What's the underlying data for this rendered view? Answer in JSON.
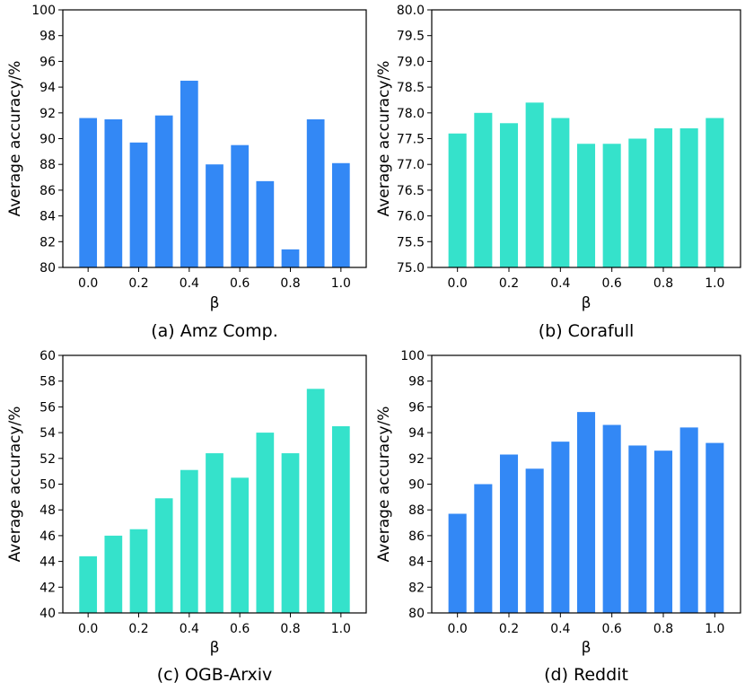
{
  "colors": {
    "blue": "#3388f5",
    "teal": "#35e2cb"
  },
  "chart_data": [
    {
      "type": "bar",
      "caption": "(a) Amz Comp.",
      "xlabel": "β",
      "ylabel": "Average accuracy/%",
      "color": "#3388f5",
      "x": [
        0.0,
        0.1,
        0.2,
        0.3,
        0.4,
        0.5,
        0.6,
        0.7,
        0.8,
        0.9,
        1.0
      ],
      "values": [
        91.6,
        91.5,
        89.7,
        91.8,
        94.5,
        88.0,
        89.5,
        86.7,
        81.4,
        91.5,
        88.1
      ],
      "xticks": [
        "0.0",
        "0.2",
        "0.4",
        "0.6",
        "0.8",
        "1.0"
      ],
      "yticks": [
        "80",
        "82",
        "84",
        "86",
        "88",
        "90",
        "92",
        "94",
        "96",
        "98",
        "100"
      ],
      "ylim": [
        80,
        100
      ],
      "grid": false
    },
    {
      "type": "bar",
      "caption": "(b) Corafull",
      "xlabel": "β",
      "ylabel": "Average accuracy/%",
      "color": "#35e2cb",
      "x": [
        0.0,
        0.1,
        0.2,
        0.3,
        0.4,
        0.5,
        0.6,
        0.7,
        0.8,
        0.9,
        1.0
      ],
      "values": [
        77.6,
        78.0,
        77.8,
        78.2,
        77.9,
        77.4,
        77.4,
        77.5,
        77.7,
        77.7,
        77.9
      ],
      "xticks": [
        "0.0",
        "0.2",
        "0.4",
        "0.6",
        "0.8",
        "1.0"
      ],
      "yticks": [
        "75.0",
        "75.5",
        "76.0",
        "76.5",
        "77.0",
        "77.5",
        "78.0",
        "78.5",
        "79.0",
        "79.5",
        "80.0"
      ],
      "ylim": [
        75,
        80
      ],
      "grid": false
    },
    {
      "type": "bar",
      "caption": "(c) OGB-Arxiv",
      "xlabel": "β",
      "ylabel": "Average accuracy/%",
      "color": "#35e2cb",
      "x": [
        0.0,
        0.1,
        0.2,
        0.3,
        0.4,
        0.5,
        0.6,
        0.7,
        0.8,
        0.9,
        1.0
      ],
      "values": [
        44.4,
        46.0,
        46.5,
        48.9,
        51.1,
        52.4,
        50.5,
        54.0,
        52.4,
        57.4,
        54.5
      ],
      "xticks": [
        "0.0",
        "0.2",
        "0.4",
        "0.6",
        "0.8",
        "1.0"
      ],
      "yticks": [
        "40",
        "42",
        "44",
        "46",
        "48",
        "50",
        "52",
        "54",
        "56",
        "58",
        "60"
      ],
      "ylim": [
        40,
        60
      ],
      "grid": false
    },
    {
      "type": "bar",
      "caption": "(d) Reddit",
      "xlabel": "β",
      "ylabel": "Average accuracy/%",
      "color": "#3388f5",
      "x": [
        0.0,
        0.1,
        0.2,
        0.3,
        0.4,
        0.5,
        0.6,
        0.7,
        0.8,
        0.9,
        1.0
      ],
      "values": [
        87.7,
        90.0,
        92.3,
        91.2,
        93.3,
        95.6,
        94.6,
        93.0,
        92.6,
        94.4,
        93.2
      ],
      "xticks": [
        "0.0",
        "0.2",
        "0.4",
        "0.6",
        "0.8",
        "1.0"
      ],
      "yticks": [
        "80",
        "82",
        "84",
        "86",
        "88",
        "90",
        "92",
        "94",
        "96",
        "98",
        "100"
      ],
      "ylim": [
        80,
        100
      ],
      "grid": false
    }
  ]
}
